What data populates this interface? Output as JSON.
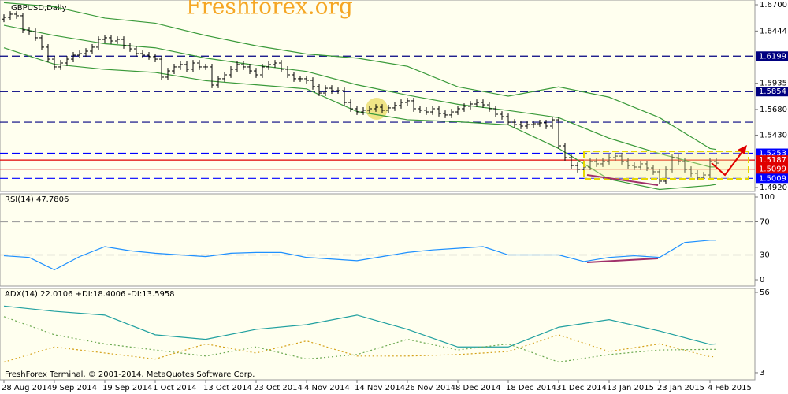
{
  "watermark": "Freshforex.org",
  "footer": "FreshForex Terminal, © 2001-2014, MetaQuotes Software Corp.",
  "chart_data": [
    {
      "type": "ohlc",
      "title": "GBPUSD,Daily",
      "color": "#000000",
      "xlim": [
        -0.625,
        119.125
      ],
      "xticks": [
        {
          "value": 0,
          "label": "28 Aug 2014"
        },
        {
          "value": 8,
          "label": "9 Sep 2014"
        },
        {
          "value": 16,
          "label": "19 Sep 2014"
        },
        {
          "value": 24,
          "label": "1 Oct 2014"
        },
        {
          "value": 32,
          "label": "13 Oct 2014"
        },
        {
          "value": 40,
          "label": "23 Oct 2014"
        },
        {
          "value": 48,
          "label": "4 Nov 2014"
        },
        {
          "value": 56,
          "label": "14 Nov 2014"
        },
        {
          "value": 64,
          "label": "26 Nov 2014"
        },
        {
          "value": 72,
          "label": "8 Dec 2014"
        },
        {
          "value": 80,
          "label": "18 Dec 2014"
        },
        {
          "value": 88,
          "label": "31 Dec 2014"
        },
        {
          "value": 96,
          "label": "13 Jan 2015"
        },
        {
          "value": 104,
          "label": "23 Jan 2015"
        },
        {
          "value": 112,
          "label": "4 Feb 2015"
        }
      ],
      "ylim": [
        1.4881,
        1.6746
      ],
      "yticks": [
        {
          "value": 1.67,
          "label": "1.6700"
        },
        {
          "value": 1.6444,
          "label": "1.6444"
        },
        {
          "value": 1.5935,
          "label": "1.5935"
        },
        {
          "value": 1.568,
          "label": "1.5680"
        },
        {
          "value": 1.543,
          "label": "1.5430"
        },
        {
          "value": 1.492,
          "label": "1.4920"
        }
      ],
      "levels": [
        {
          "value": 1.6199,
          "label": "1.6199",
          "color": "#000080",
          "dashed": true
        },
        {
          "value": 1.5854,
          "label": "1.5854",
          "color": "#000080",
          "dashed": true
        },
        {
          "value": 1.5556,
          "color": "#000080",
          "dashed": true
        },
        {
          "value": 1.5253,
          "label": "1.5253",
          "color": "#0000ff",
          "dashed": true
        },
        {
          "value": 1.5187,
          "label": "1.5187",
          "color": "#e00000",
          "dashed": false
        },
        {
          "value": 1.5099,
          "label": "1.5099",
          "color": "#e00000",
          "dashed": false
        },
        {
          "value": 1.5009,
          "label": "1.5009",
          "color": "#0000ff",
          "dashed": true
        }
      ],
      "open": [
        1.656,
        1.6577,
        1.6608,
        1.6593,
        1.6454,
        1.6439,
        1.6378,
        1.6286,
        1.617,
        1.6094,
        1.6132,
        1.617,
        1.6209,
        1.6224,
        1.6247,
        1.6286,
        1.6362,
        1.6378,
        1.6347,
        1.6362,
        1.6301,
        1.627,
        1.6224,
        1.6209,
        1.6194,
        1.617,
        1.5994,
        1.6055,
        1.6094,
        1.6117,
        1.6071,
        1.6132,
        1.6094,
        1.6094,
        1.5917,
        1.5979,
        1.6017,
        1.6071,
        1.6117,
        1.6094,
        1.6055,
        1.6017,
        1.6094,
        1.6117,
        1.6132,
        1.6071,
        1.6017,
        1.5979,
        1.5979,
        1.5963,
        1.5902,
        1.584,
        1.5886,
        1.5863,
        1.5863,
        1.5748,
        1.5687,
        1.5656,
        1.5672,
        1.5687,
        1.5702,
        1.5672,
        1.5695,
        1.5718,
        1.5748,
        1.5764,
        1.5687,
        1.5672,
        1.5656,
        1.5687,
        1.5641,
        1.5626,
        1.5656,
        1.5687,
        1.571,
        1.5733,
        1.5748,
        1.5725,
        1.5687,
        1.5633,
        1.561,
        1.5556,
        1.5533,
        1.5518,
        1.5533,
        1.5541,
        1.5549,
        1.5518,
        1.5579,
        1.5326,
        1.5211,
        1.5134,
        1.5096,
        1.5119,
        1.5173,
        1.515,
        1.5173,
        1.5211,
        1.5226,
        1.5173,
        1.5134,
        1.5119,
        1.515,
        1.5111,
        1.5073,
        1.4981,
        1.5096,
        1.5211,
        1.5173,
        1.5096,
        1.5058,
        1.5019,
        1.5042,
        1.5173
      ],
      "high": [
        1.6607,
        1.6638,
        1.6638,
        1.6623,
        1.6484,
        1.6469,
        1.6408,
        1.6316,
        1.62,
        1.6162,
        1.62,
        1.6239,
        1.6254,
        1.6277,
        1.6316,
        1.6392,
        1.6408,
        1.6408,
        1.6392,
        1.6392,
        1.6331,
        1.63,
        1.6254,
        1.6239,
        1.6224,
        1.62,
        1.6085,
        1.6124,
        1.6147,
        1.6147,
        1.6162,
        1.6162,
        1.6124,
        1.6124,
        1.6009,
        1.6047,
        1.6101,
        1.6147,
        1.6147,
        1.6124,
        1.6085,
        1.6124,
        1.6147,
        1.6162,
        1.6162,
        1.6101,
        1.6047,
        1.6009,
        1.6009,
        1.5993,
        1.5932,
        1.5916,
        1.5916,
        1.5893,
        1.5893,
        1.5778,
        1.5717,
        1.5702,
        1.5717,
        1.5732,
        1.5732,
        1.5725,
        1.5748,
        1.5778,
        1.5794,
        1.5794,
        1.5717,
        1.5702,
        1.5717,
        1.5717,
        1.5671,
        1.5686,
        1.5717,
        1.574,
        1.5763,
        1.5778,
        1.5778,
        1.5755,
        1.5717,
        1.5663,
        1.564,
        1.5586,
        1.5563,
        1.5563,
        1.5571,
        1.5579,
        1.5579,
        1.5609,
        1.5609,
        1.5356,
        1.5241,
        1.5164,
        1.5149,
        1.5203,
        1.5203,
        1.5203,
        1.5241,
        1.5256,
        1.5256,
        1.5203,
        1.5164,
        1.518,
        1.518,
        1.5141,
        1.5103,
        1.5126,
        1.5241,
        1.5241,
        1.5203,
        1.5126,
        1.5088,
        1.5072,
        1.5203,
        1.5203
      ],
      "low": [
        1.653,
        1.6547,
        1.6563,
        1.6424,
        1.6409,
        1.6348,
        1.6256,
        1.614,
        1.6064,
        1.6064,
        1.6102,
        1.614,
        1.6179,
        1.6194,
        1.6217,
        1.6256,
        1.6332,
        1.6317,
        1.6317,
        1.6271,
        1.624,
        1.6194,
        1.6179,
        1.6164,
        1.614,
        1.5964,
        1.5964,
        1.6025,
        1.6064,
        1.6041,
        1.6041,
        1.6064,
        1.6064,
        1.5887,
        1.5887,
        1.5949,
        1.5987,
        1.6041,
        1.6064,
        1.6025,
        1.5987,
        1.5987,
        1.6064,
        1.6087,
        1.6041,
        1.5987,
        1.5949,
        1.5949,
        1.5933,
        1.5872,
        1.581,
        1.581,
        1.5833,
        1.5833,
        1.5718,
        1.5657,
        1.5626,
        1.5626,
        1.5642,
        1.5657,
        1.5642,
        1.5642,
        1.5665,
        1.5688,
        1.5718,
        1.5657,
        1.5642,
        1.5626,
        1.5626,
        1.5611,
        1.5596,
        1.5596,
        1.5626,
        1.5657,
        1.568,
        1.5703,
        1.5695,
        1.5657,
        1.5603,
        1.558,
        1.5526,
        1.5503,
        1.5488,
        1.5488,
        1.5503,
        1.5511,
        1.5488,
        1.5488,
        1.5296,
        1.5181,
        1.5104,
        1.5066,
        1.5066,
        1.5089,
        1.512,
        1.512,
        1.5143,
        1.5181,
        1.5143,
        1.5104,
        1.5089,
        1.5089,
        1.5081,
        1.5043,
        1.4951,
        1.4951,
        1.5066,
        1.5143,
        1.5066,
        1.5028,
        1.4989,
        1.4989,
        1.5012,
        1.5127
      ],
      "close": [
        1.6577,
        1.6608,
        1.6593,
        1.6454,
        1.6439,
        1.6378,
        1.6286,
        1.617,
        1.6094,
        1.6132,
        1.617,
        1.6209,
        1.6224,
        1.6247,
        1.6286,
        1.6362,
        1.6378,
        1.6347,
        1.6362,
        1.6301,
        1.627,
        1.6224,
        1.6209,
        1.6194,
        1.617,
        1.5994,
        1.6055,
        1.6094,
        1.6117,
        1.6071,
        1.6132,
        1.6094,
        1.6094,
        1.5917,
        1.5979,
        1.6017,
        1.6071,
        1.6117,
        1.6094,
        1.6055,
        1.6017,
        1.6094,
        1.6117,
        1.6132,
        1.6071,
        1.6017,
        1.5979,
        1.5979,
        1.5963,
        1.5902,
        1.584,
        1.5886,
        1.5863,
        1.5863,
        1.5748,
        1.5687,
        1.5656,
        1.5672,
        1.5687,
        1.5702,
        1.5672,
        1.5695,
        1.5718,
        1.5748,
        1.5764,
        1.5687,
        1.5672,
        1.5656,
        1.5687,
        1.5641,
        1.5626,
        1.5656,
        1.5687,
        1.571,
        1.5733,
        1.5748,
        1.5725,
        1.5687,
        1.5633,
        1.561,
        1.5556,
        1.5533,
        1.5518,
        1.5533,
        1.5541,
        1.5549,
        1.5518,
        1.5579,
        1.5326,
        1.5211,
        1.5134,
        1.5096,
        1.5119,
        1.5173,
        1.515,
        1.5173,
        1.5211,
        1.5226,
        1.5173,
        1.5134,
        1.5119,
        1.515,
        1.5111,
        1.5073,
        1.4981,
        1.5096,
        1.5211,
        1.5173,
        1.5096,
        1.5058,
        1.5019,
        1.5042,
        1.5173,
        1.5157
      ],
      "series": [
        {
          "color": "#3a9a3a",
          "x": [
            0,
            8,
            16,
            24,
            32,
            40,
            48,
            56,
            64,
            72,
            80,
            88,
            96,
            104,
            112,
            113
          ],
          "values": [
            1.672,
            1.668,
            1.657,
            1.652,
            1.64,
            1.63,
            1.622,
            1.618,
            1.61,
            1.59,
            1.581,
            1.59,
            1.58,
            1.56,
            1.53,
            1.529
          ]
        },
        {
          "color": "#3a9a3a",
          "x": [
            0,
            8,
            16,
            24,
            32,
            40,
            48,
            56,
            64,
            72,
            80,
            88,
            96,
            104,
            112,
            113
          ],
          "values": [
            1.65,
            1.64,
            1.632,
            1.628,
            1.618,
            1.611,
            1.605,
            1.592,
            1.582,
            1.573,
            1.567,
            1.56,
            1.54,
            1.525,
            1.512,
            1.512
          ]
        },
        {
          "color": "#3a9a3a",
          "x": [
            0,
            8,
            16,
            24,
            32,
            40,
            48,
            56,
            64,
            72,
            80,
            88,
            96,
            104,
            112,
            113
          ],
          "values": [
            1.628,
            1.612,
            1.607,
            1.604,
            1.596,
            1.592,
            1.588,
            1.566,
            1.558,
            1.556,
            1.553,
            1.53,
            1.5,
            1.49,
            1.494,
            1.495
          ]
        }
      ]
    },
    {
      "type": "line",
      "title": "RSI(14) 47.7806",
      "ylim": [
        -7.6,
        103.8
      ],
      "yticks": [
        100,
        70,
        30,
        0
      ],
      "levels": [
        {
          "value": 70,
          "color": "#a0a0a0",
          "dashed": true
        },
        {
          "value": 30,
          "color": "#a0a0a0",
          "dashed": true
        }
      ],
      "series": [
        {
          "color": "#1e90ff",
          "x": [
            0,
            4,
            8,
            12,
            16,
            20,
            24,
            28,
            32,
            36,
            40,
            44,
            48,
            52,
            56,
            60,
            64,
            68,
            72,
            76,
            80,
            84,
            88,
            92,
            96,
            100,
            104,
            108,
            112,
            113
          ],
          "values": [
            29,
            27,
            12,
            28,
            40,
            35,
            32,
            30,
            28,
            32,
            33,
            33,
            27,
            25,
            23,
            28,
            33,
            36,
            38,
            40,
            30,
            30,
            30,
            22,
            27,
            29,
            27,
            45,
            47.8,
            47.78
          ]
        }
      ]
    },
    {
      "type": "line",
      "title": "ADX(14) 22.0106 +DI:18.4006 -DI:13.5958",
      "ylim": [
        -1.7,
        58.6
      ],
      "yticks": [
        56,
        3
      ],
      "series": [
        {
          "color": "#20a0a0",
          "x": [
            0,
            8,
            16,
            24,
            32,
            40,
            48,
            56,
            64,
            72,
            80,
            88,
            96,
            104,
            112,
            113
          ],
          "values": [
            47,
            43.5,
            41,
            28,
            25,
            31.6,
            34.7,
            41,
            31.6,
            20,
            20,
            33,
            38,
            30.5,
            21.7,
            22.01
          ]
        },
        {
          "color": "#6aa84f",
          "dashed": true,
          "x": [
            0,
            8,
            16,
            24,
            32,
            40,
            48,
            56,
            64,
            72,
            80,
            88,
            96,
            104,
            112,
            113
          ],
          "values": [
            40,
            28,
            22,
            18,
            14,
            20,
            12,
            15,
            25,
            18,
            22,
            10,
            15,
            18,
            18.4,
            18.4
          ]
        },
        {
          "color": "#d4a017",
          "dashed": true,
          "x": [
            0,
            8,
            16,
            24,
            32,
            40,
            48,
            56,
            64,
            72,
            80,
            88,
            96,
            104,
            112,
            113
          ],
          "values": [
            10,
            20,
            16,
            12,
            22,
            16,
            24,
            14,
            14,
            15,
            17,
            28,
            17,
            22,
            13.6,
            13.6
          ]
        }
      ]
    }
  ]
}
